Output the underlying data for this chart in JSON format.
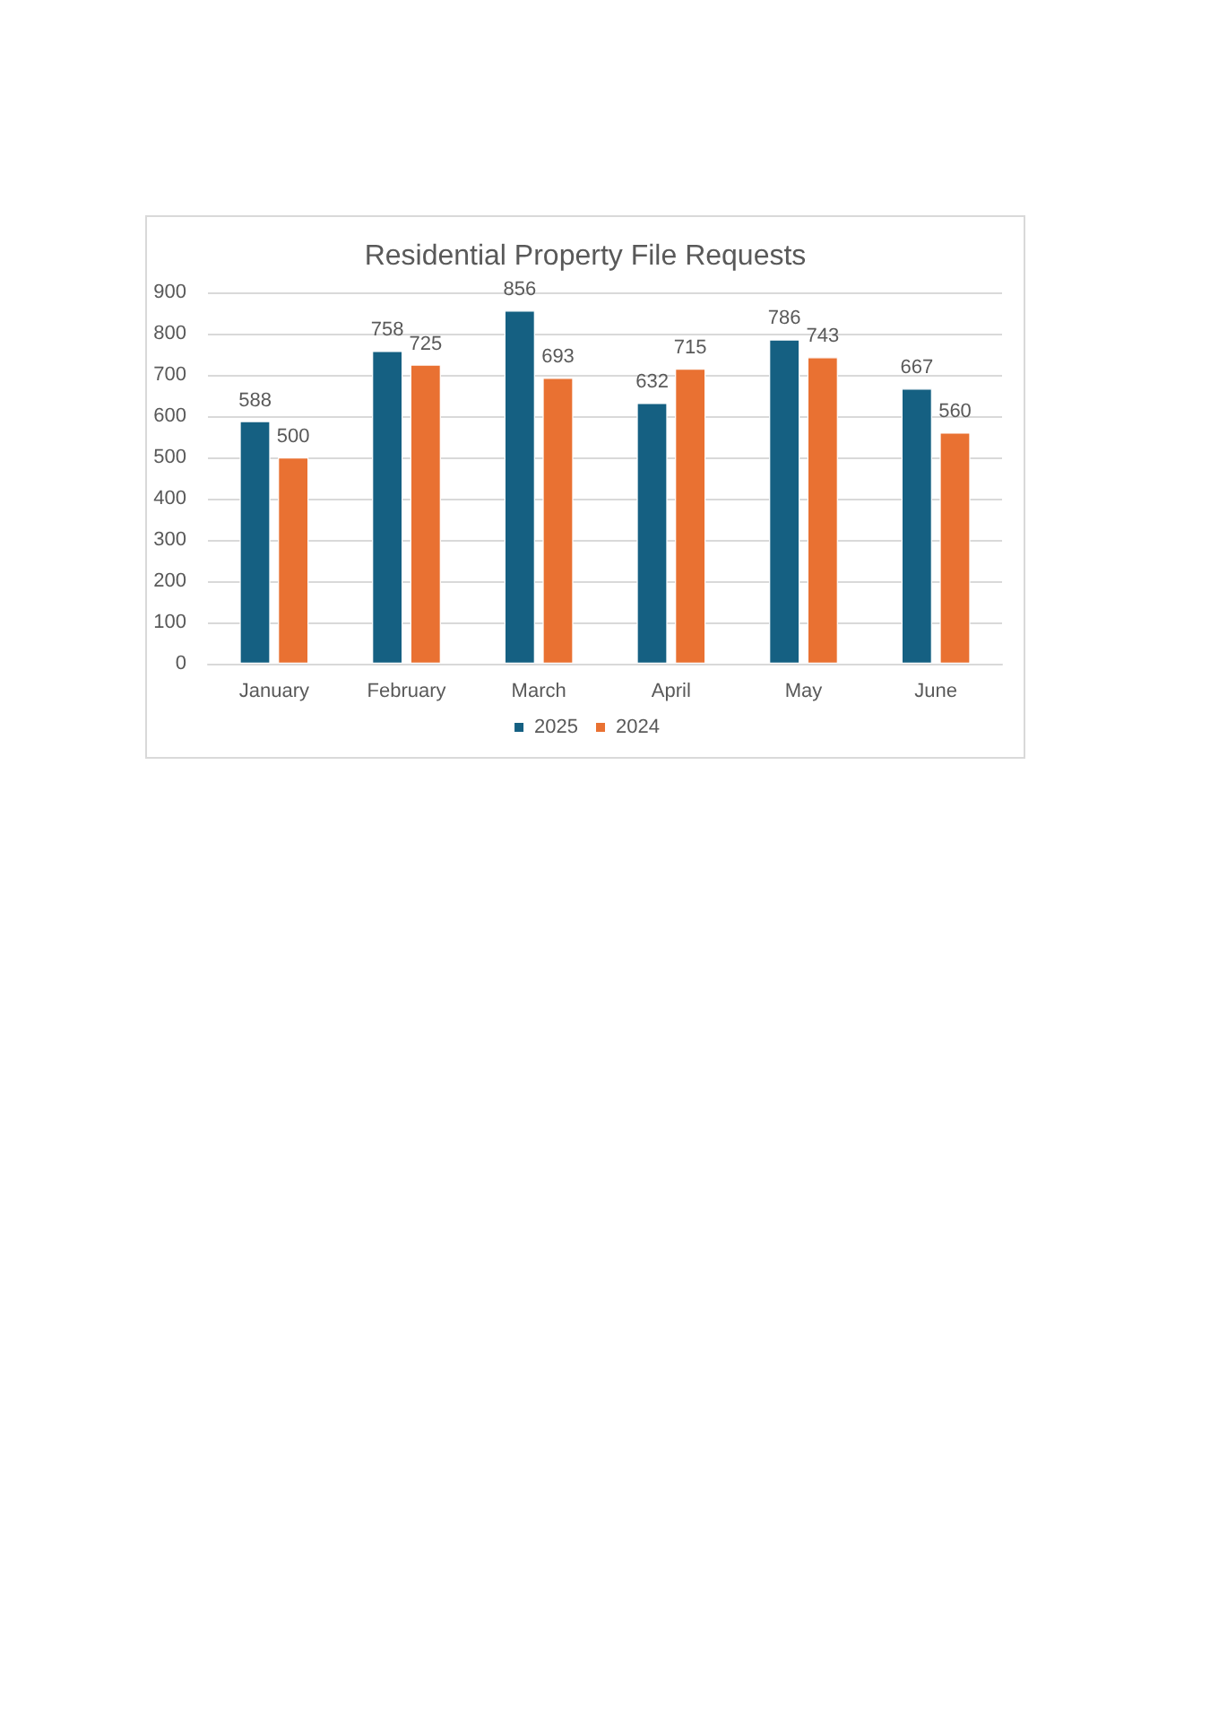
{
  "chart_data": {
    "type": "bar",
    "title": "Residential Property File Requests",
    "categories": [
      "January",
      "February",
      "March",
      "April",
      "May",
      "June"
    ],
    "series": [
      {
        "name": "2025",
        "color": "#156082",
        "values": [
          588,
          758,
          856,
          632,
          786,
          667
        ]
      },
      {
        "name": "2024",
        "color": "#e97132",
        "values": [
          500,
          725,
          693,
          715,
          743,
          560
        ]
      }
    ],
    "ylim": [
      0,
      900
    ],
    "yticks": [
      0,
      100,
      200,
      300,
      400,
      500,
      600,
      700,
      800,
      900
    ],
    "grid": "y",
    "legend": "bottom",
    "data_labels": true
  }
}
